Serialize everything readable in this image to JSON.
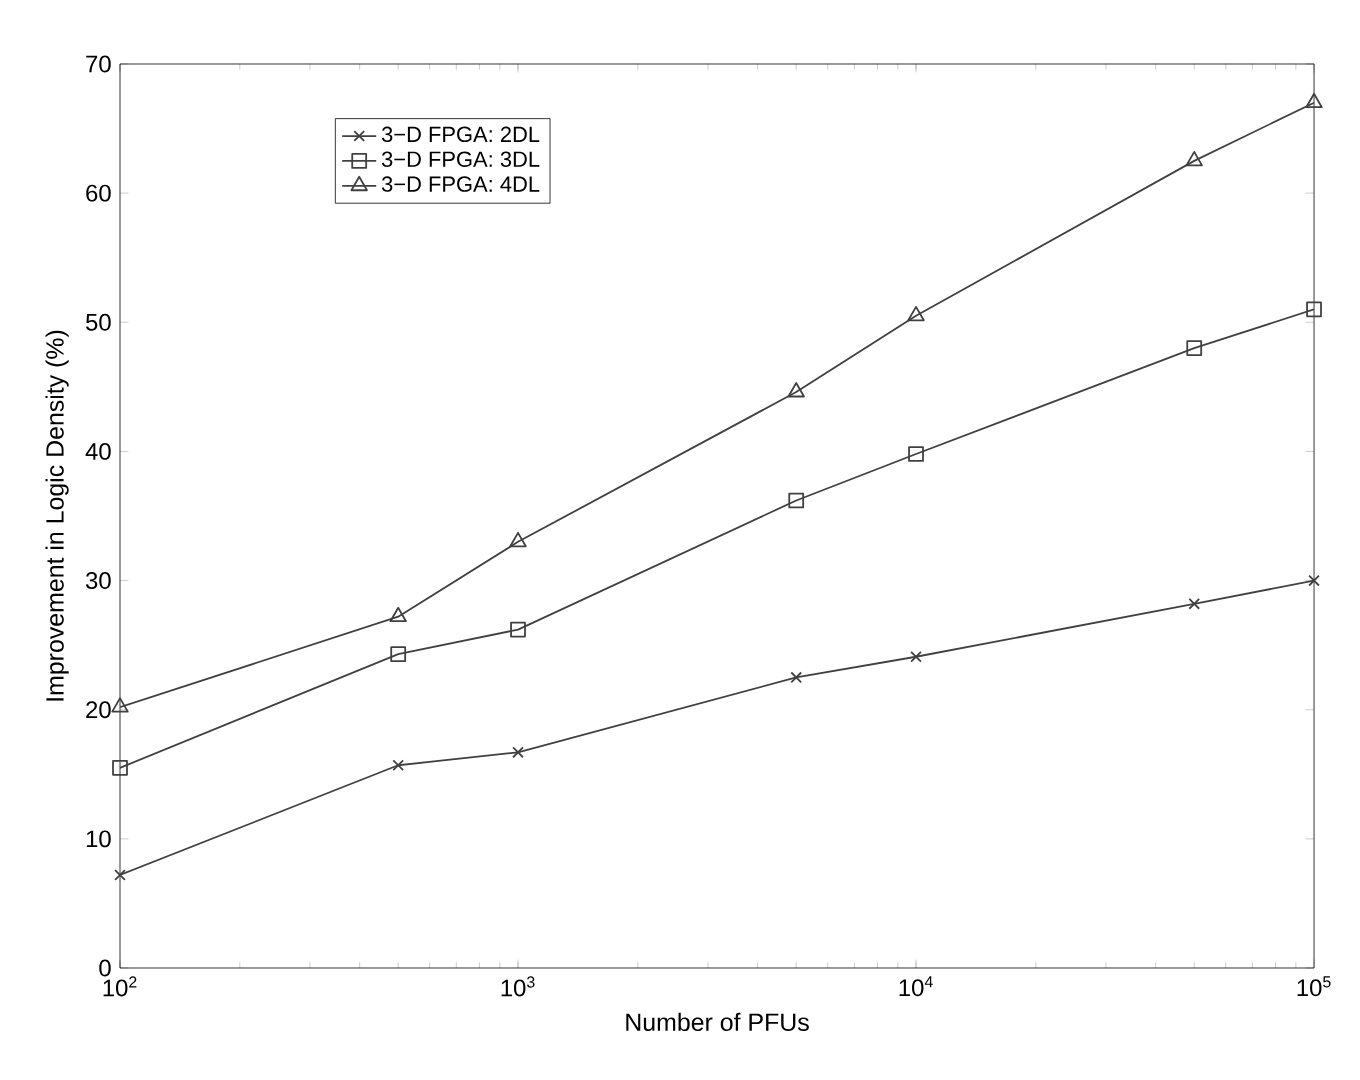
{
  "chart_data": {
    "type": "line",
    "xlabel": "Number of PFUs",
    "ylabel": "Improvement in Logic Density (%)",
    "x": [
      100,
      500,
      1000,
      5000,
      10000,
      50000,
      100000
    ],
    "series": [
      {
        "name": "3−D FPGA: 2DL",
        "color": "#404040",
        "marker": "cross",
        "values": [
          7.2,
          15.7,
          16.7,
          22.5,
          24.1,
          28.2,
          30.0
        ]
      },
      {
        "name": "3−D FPGA: 3DL",
        "color": "#404040",
        "marker": "square",
        "values": [
          15.5,
          24.3,
          26.2,
          36.2,
          39.8,
          48.0,
          51.0
        ]
      },
      {
        "name": "3−D FPGA: 4DL",
        "color": "#404040",
        "marker": "triangle",
        "values": [
          20.2,
          27.2,
          33.0,
          44.6,
          50.5,
          62.5,
          67.0
        ]
      }
    ],
    "log": "x",
    "xlim": [
      100,
      100000
    ],
    "xticks": [
      {
        "value": 100,
        "label": "10$^{2}$"
      },
      {
        "value": 1000,
        "label": "10$^{3}$"
      },
      {
        "value": 10000,
        "label": "10$^{4}$"
      },
      {
        "value": 100000,
        "label": "10$^{5}$"
      }
    ],
    "ylim": [
      0,
      70
    ],
    "yticks": [
      0,
      10,
      20,
      30,
      40,
      50,
      60,
      70
    ],
    "grid": false,
    "legend": "top left",
    "line_style": "solid"
  }
}
